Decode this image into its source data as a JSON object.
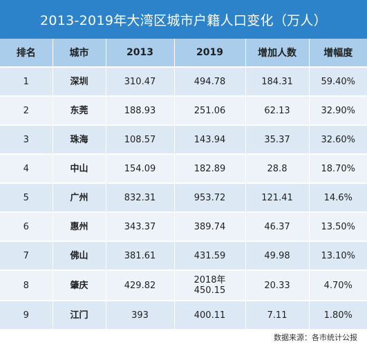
{
  "title": "2013-2019年大湾区城市户籍人口变化（万人）",
  "table": {
    "headers": [
      "排名",
      "城市",
      "2013",
      "2019",
      "增加人数",
      "增幅度"
    ],
    "rows": [
      {
        "rank": "1",
        "city": "深圳",
        "y2013": "310.47",
        "y2019": "494.78",
        "increase": "184.31",
        "rate": "59.40%"
      },
      {
        "rank": "2",
        "city": "东莞",
        "y2013": "188.93",
        "y2019": "251.06",
        "increase": "62.13",
        "rate": "32.90%"
      },
      {
        "rank": "3",
        "city": "珠海",
        "y2013": "108.57",
        "y2019": "143.94",
        "increase": "35.37",
        "rate": "32.60%"
      },
      {
        "rank": "4",
        "city": "中山",
        "y2013": "154.09",
        "y2019": "182.89",
        "increase": "28.8",
        "rate": "18.70%"
      },
      {
        "rank": "5",
        "city": "广州",
        "y2013": "832.31",
        "y2019": "953.72",
        "increase": "121.41",
        "rate": "14.6%"
      },
      {
        "rank": "6",
        "city": "惠州",
        "y2013": "343.37",
        "y2019": "389.74",
        "increase": "46.37",
        "rate": "13.50%"
      },
      {
        "rank": "7",
        "city": "佛山",
        "y2013": "381.61",
        "y2019": "431.59",
        "increase": "49.98",
        "rate": "13.10%"
      },
      {
        "rank": "8",
        "city": "肇庆",
        "y2013": "429.82",
        "y2019_line1": "2018年",
        "y2019": "450.15",
        "increase": "20.33",
        "rate": "4.70%"
      },
      {
        "rank": "9",
        "city": "江门",
        "y2013": "393",
        "y2019": "400.11",
        "increase": "7.11",
        "rate": "1.80%"
      }
    ]
  },
  "source": "数据来源：各市统计公报",
  "colors": {
    "title_bg": "#2c83c9",
    "header_bg": "#a9cdea",
    "row_odd": "#dce8f3",
    "row_even": "#eef3f9"
  }
}
